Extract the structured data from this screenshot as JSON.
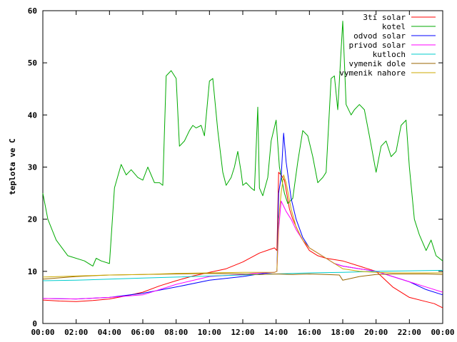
{
  "chart_data": {
    "type": "line",
    "title": "",
    "xlabel": "",
    "ylabel": "teplota ve C",
    "xlim": [
      0,
      24
    ],
    "ylim": [
      0,
      60
    ],
    "grid": false,
    "legend_position": "top-right",
    "x_tick_labels": [
      "00:00",
      "02:00",
      "04:00",
      "06:00",
      "08:00",
      "10:00",
      "12:00",
      "14:00",
      "16:00",
      "18:00",
      "20:00",
      "22:00",
      "00:00"
    ],
    "y_tick_labels": [
      "0",
      "10",
      "20",
      "30",
      "40",
      "50",
      "60"
    ],
    "y_ticks": [
      0,
      10,
      20,
      30,
      40,
      50,
      60
    ],
    "series": [
      {
        "name": "3ti solar",
        "color": "#ff0000",
        "x": [
          0,
          1,
          2,
          3,
          4,
          5,
          6,
          7,
          8,
          9,
          10,
          11,
          12,
          13,
          13.9,
          14.05,
          14.15,
          14.3,
          14.5,
          14.8,
          15,
          15.5,
          16,
          16.5,
          17,
          18,
          19,
          19.5,
          20,
          20.5,
          21,
          22,
          23,
          23.5,
          24
        ],
        "y": [
          4.5,
          4.3,
          4.2,
          4.4,
          4.7,
          5.3,
          6.0,
          7.2,
          8.2,
          9.1,
          9.8,
          10.5,
          11.8,
          13.5,
          14.5,
          14.0,
          29.0,
          28.5,
          27.5,
          22.0,
          20.0,
          16.5,
          14.0,
          13.0,
          12.5,
          12.0,
          11.0,
          10.5,
          10.0,
          8.5,
          7.0,
          5.0,
          4.2,
          3.8,
          3.0
        ]
      },
      {
        "name": "kotel",
        "color": "#00aa00",
        "x": [
          0,
          0.3,
          0.8,
          1.5,
          2.5,
          3.0,
          3.2,
          3.5,
          4.0,
          4.3,
          4.7,
          5.0,
          5.3,
          5.7,
          6.0,
          6.3,
          6.7,
          7.0,
          7.2,
          7.4,
          7.7,
          8.0,
          8.2,
          8.5,
          8.8,
          9.0,
          9.2,
          9.5,
          9.7,
          10.0,
          10.2,
          10.5,
          10.8,
          11.0,
          11.3,
          11.5,
          11.7,
          11.9,
          12.0,
          12.2,
          12.5,
          12.7,
          12.9,
          13.0,
          13.2,
          13.5,
          13.7,
          14.0,
          14.2,
          14.5,
          14.7,
          15.0,
          15.3,
          15.6,
          15.9,
          16.2,
          16.5,
          16.8,
          17.0,
          17.3,
          17.5,
          17.7,
          18.0,
          18.2,
          18.5,
          18.7,
          19.0,
          19.3,
          19.6,
          20.0,
          20.3,
          20.6,
          20.9,
          21.2,
          21.5,
          21.8,
          22.0,
          22.3,
          22.6,
          23.0,
          23.3,
          23.6,
          24
        ],
        "y": [
          25,
          20,
          16,
          13,
          12,
          11,
          12.5,
          12,
          11.5,
          26,
          30.5,
          28.5,
          29.5,
          28,
          27.5,
          30,
          27,
          27,
          26.5,
          47.5,
          48.5,
          47,
          34,
          35,
          37,
          38,
          37.5,
          38,
          36,
          46.5,
          47,
          37,
          29,
          26.5,
          28,
          30,
          33,
          29,
          26.5,
          27,
          26,
          25.5,
          41.5,
          26,
          24.5,
          28,
          35,
          39,
          30,
          25,
          23,
          24,
          31,
          37,
          36,
          32,
          27,
          28,
          29,
          47,
          47.5,
          41,
          58,
          42,
          40,
          41,
          42,
          41,
          36,
          29,
          34,
          35,
          32,
          33,
          38,
          39,
          30,
          20,
          17,
          14,
          16,
          13,
          12
        ]
      },
      {
        "name": "odvod solar",
        "color": "#0000ff",
        "x": [
          0,
          2,
          4,
          6,
          8,
          10,
          12,
          13,
          13.9,
          14.05,
          14.15,
          14.3,
          14.45,
          14.6,
          14.9,
          15.2,
          15.6,
          16,
          16.5,
          17,
          17.5,
          18,
          19,
          20,
          21,
          22,
          23,
          24
        ],
        "y": [
          4.8,
          4.7,
          5.0,
          5.8,
          7.0,
          8.3,
          9.0,
          9.5,
          9.8,
          10.0,
          25.0,
          28.0,
          36.5,
          31.0,
          24.0,
          20.0,
          16.5,
          14.5,
          13.5,
          12.5,
          11.5,
          11.0,
          10.5,
          10.0,
          9.0,
          8.0,
          6.5,
          5.5
        ]
      },
      {
        "name": "privod solar",
        "color": "#ff00ff",
        "x": [
          0,
          2,
          4,
          6,
          8,
          10,
          12,
          13,
          13.9,
          14.05,
          14.15,
          14.3,
          14.45,
          14.6,
          14.9,
          15.2,
          15.6,
          16,
          16.5,
          17,
          17.5,
          18,
          19,
          20,
          21,
          22,
          23,
          24
        ],
        "y": [
          4.8,
          4.7,
          5.0,
          5.5,
          7.5,
          9.0,
          9.4,
          9.7,
          9.8,
          10.0,
          18.0,
          23.5,
          22.5,
          21.5,
          20.0,
          18.0,
          16.0,
          14.5,
          13.5,
          12.5,
          11.5,
          11.0,
          10.5,
          10.0,
          9.0,
          8.0,
          7.0,
          6.0
        ]
      },
      {
        "name": "kutloch",
        "color": "#00cccc",
        "x": [
          0,
          2,
          4,
          6,
          8,
          10,
          12,
          14,
          16,
          18,
          20,
          22,
          24
        ],
        "y": [
          8.2,
          8.3,
          8.5,
          8.7,
          8.9,
          9.1,
          9.3,
          9.5,
          9.7,
          9.8,
          10.0,
          10.1,
          10.2
        ]
      },
      {
        "name": "vymenik dole",
        "color": "#996600",
        "x": [
          0,
          2,
          4,
          6,
          8,
          10,
          12,
          13,
          14,
          15,
          16,
          17,
          17.8,
          18.0,
          18.3,
          19,
          20,
          21,
          22,
          23,
          24
        ],
        "y": [
          8.5,
          9.0,
          9.3,
          9.4,
          9.5,
          9.6,
          9.5,
          9.4,
          9.5,
          9.4,
          9.5,
          9.4,
          9.3,
          8.3,
          8.5,
          9.0,
          9.4,
          9.5,
          9.5,
          9.5,
          9.4
        ]
      },
      {
        "name": "vymenik nahore",
        "color": "#ccaa00",
        "x": [
          0,
          2,
          4,
          6,
          8,
          10,
          12,
          13,
          13.9,
          14.05,
          14.15,
          14.3,
          14.45,
          14.6,
          14.9,
          15.2,
          15.6,
          16,
          17,
          18,
          19,
          20,
          21,
          22,
          23,
          24
        ],
        "y": [
          8.9,
          9.1,
          9.3,
          9.4,
          9.6,
          9.7,
          9.8,
          9.8,
          9.8,
          10.0,
          20.0,
          25.0,
          28.5,
          27.0,
          22.0,
          18.5,
          16.0,
          14.5,
          12.5,
          10.5,
          10.0,
          9.8,
          9.7,
          9.7,
          9.7,
          9.7
        ]
      }
    ]
  }
}
